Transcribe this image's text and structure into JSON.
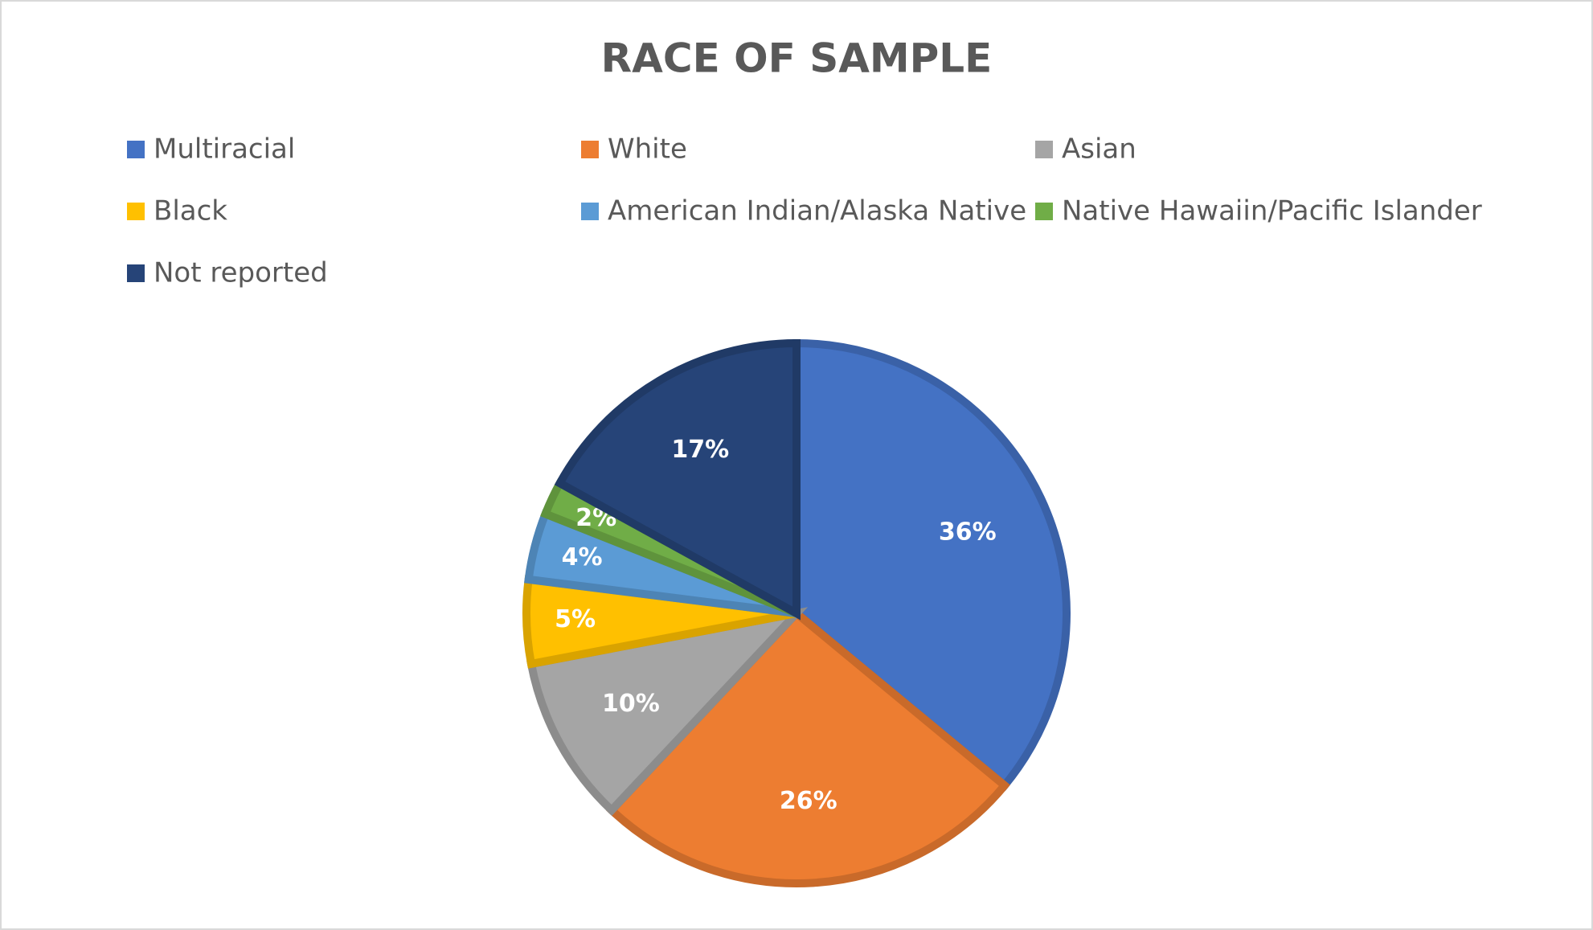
{
  "chart_data": {
    "type": "pie",
    "title": "RACE OF SAMPLE",
    "categories": [
      "Multiracial",
      "White",
      "Asian",
      "Black",
      "American Indian/Alaska Native",
      "Native Hawaiin/Pacific Islander",
      "Not reported"
    ],
    "values": [
      36,
      26,
      10,
      5,
      4,
      2,
      17
    ],
    "value_labels": [
      "36%",
      "26%",
      "10%",
      "5%",
      "4%",
      "2%",
      "17%"
    ],
    "colors": [
      "#4472c4",
      "#ed7d31",
      "#a5a5a5",
      "#ffc000",
      "#5b9bd5",
      "#70ad47",
      "#264478"
    ],
    "legend": "top"
  }
}
